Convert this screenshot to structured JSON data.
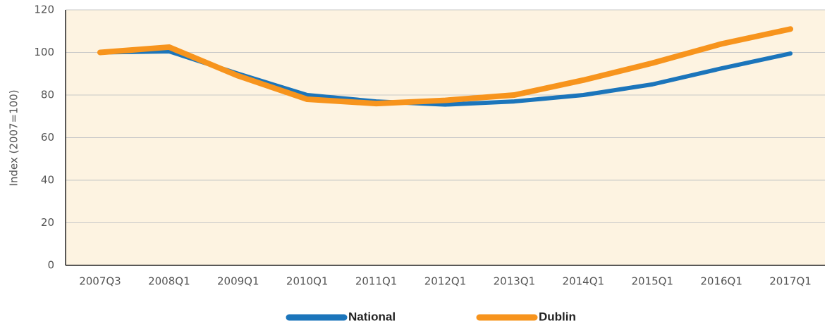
{
  "chart_data": {
    "type": "line",
    "y_label": "Index (2007=100)",
    "categories": [
      "2007Q3",
      "2008Q1",
      "2009Q1",
      "2010Q1",
      "2011Q1",
      "2012Q1",
      "2013Q1",
      "2014Q1",
      "2015Q1",
      "2016Q1",
      "2017Q1"
    ],
    "series": [
      {
        "name": "National",
        "color": "#1b75bb",
        "values": [
          100,
          100.5,
          90,
          80,
          77,
          75.5,
          77,
          80,
          85,
          92.5,
          99.5
        ]
      },
      {
        "name": "Dublin",
        "color": "#f7941d",
        "values": [
          100,
          102.5,
          89,
          78,
          76,
          77.5,
          80,
          87,
          95,
          104,
          111
        ]
      }
    ],
    "ylim": [
      0,
      120
    ],
    "yticks": [
      0,
      20,
      40,
      60,
      80,
      100,
      120
    ],
    "grid": true,
    "legend": "bottom"
  }
}
